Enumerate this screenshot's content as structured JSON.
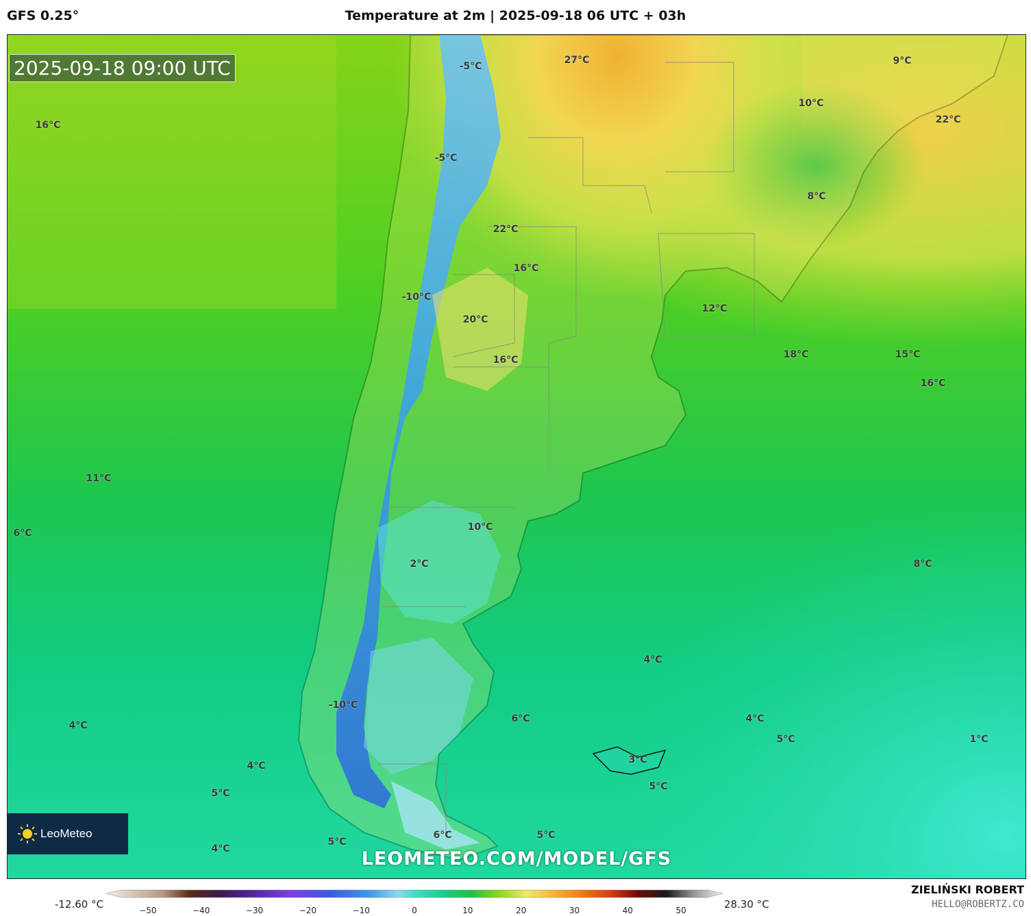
{
  "header": {
    "model": "GFS 0.25°",
    "title": "Temperature at 2m | 2025-09-18 06 UTC + 03h"
  },
  "valid_time": "2025-09-18 09:00 UTC",
  "logo_text": "LeoMeteo",
  "watermark": "LEOMETEO.COM/MODEL/GFS",
  "author": {
    "name": "ZIELIŃSKI ROBERT",
    "email": "HELLO@ROBERTZ.CO"
  },
  "temperature_labels": [
    "-5°C",
    "27°C",
    "9°C",
    "10°C",
    "22°C",
    "16°C",
    "-5°C",
    "8°C",
    "22°C",
    "16°C",
    "-10°C",
    "12°C",
    "20°C",
    "16°C",
    "18°C",
    "15°C",
    "16°C",
    "11°C",
    "6°C",
    "10°C",
    "2°C",
    "8°C",
    "4°C",
    "-10°C",
    "6°C",
    "4°C",
    "5°C",
    "1°C",
    "4°C",
    "4°C",
    "3°C",
    "5°C",
    "5°C",
    "6°C",
    "5°C",
    "5°C",
    "4°C"
  ],
  "colorbar": {
    "min_label": "-12.60 °C",
    "max_label": "28.30 °C",
    "ticks": [
      "−50",
      "−40",
      "−30",
      "−20",
      "−10",
      "0",
      "10",
      "20",
      "30",
      "40",
      "50"
    ],
    "range": [
      -55,
      55
    ],
    "stops": [
      {
        "v": -55,
        "c": "#f5efe6"
      },
      {
        "v": -45,
        "c": "#b59a86"
      },
      {
        "v": -40,
        "c": "#5a2a12"
      },
      {
        "v": -35,
        "c": "#3a1a4a"
      },
      {
        "v": -30,
        "c": "#4a2390"
      },
      {
        "v": -22,
        "c": "#7b3fe8"
      },
      {
        "v": -15,
        "c": "#3a5ae0"
      },
      {
        "v": -8,
        "c": "#3f9be8"
      },
      {
        "v": -3,
        "c": "#8fd6f0"
      },
      {
        "v": 0,
        "c": "#3fe0c8"
      },
      {
        "v": 5,
        "c": "#17d08a"
      },
      {
        "v": 10,
        "c": "#1fbf4a"
      },
      {
        "v": 15,
        "c": "#8cd81a"
      },
      {
        "v": 20,
        "c": "#f0e86a"
      },
      {
        "v": 25,
        "c": "#f5b530"
      },
      {
        "v": 30,
        "c": "#f07a10"
      },
      {
        "v": 35,
        "c": "#d83a10"
      },
      {
        "v": 40,
        "c": "#6a0a08"
      },
      {
        "v": 45,
        "c": "#1a1a1a"
      },
      {
        "v": 50,
        "c": "#9a9a9a"
      },
      {
        "v": 55,
        "c": "#f2f2f2"
      }
    ]
  }
}
